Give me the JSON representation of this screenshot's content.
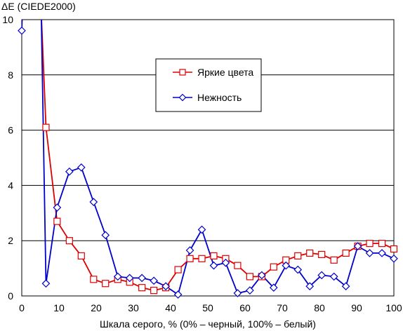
{
  "chart_data": {
    "type": "line",
    "title": "",
    "ylabel": "ΔE (CIEDE2000)",
    "xlabel": "Шкала серого, % (0% – черный, 100% – белый)",
    "xlim": [
      0,
      100
    ],
    "ylim": [
      0,
      10
    ],
    "xticks": [
      "0",
      "10",
      "20",
      "30",
      "40",
      "50",
      "60",
      "70",
      "80",
      "90",
      "100"
    ],
    "yticks": [
      "0",
      "2",
      "4",
      "6",
      "8",
      "10"
    ],
    "grid": "horizontal",
    "legend_position": "center-right",
    "series": [
      {
        "name": "Яркие цвета",
        "color": "#dd0000",
        "marker": "square",
        "x": [
          0,
          5,
          6.5,
          9.5,
          12.8,
          16,
          19.3,
          22.5,
          25.8,
          29,
          32.3,
          35.5,
          38.7,
          42,
          45.2,
          48.4,
          51.6,
          54.8,
          58,
          61.3,
          64.5,
          67.7,
          71,
          74.2,
          77.4,
          80.6,
          83.9,
          87.1,
          90.3,
          93.5,
          96.8,
          100
        ],
        "y": [
          16,
          11,
          6.1,
          2.7,
          2.0,
          1.45,
          0.6,
          0.45,
          0.6,
          0.5,
          0.3,
          0.2,
          0.3,
          0.95,
          1.35,
          1.35,
          1.45,
          1.35,
          1.1,
          0.7,
          0.7,
          1.05,
          1.3,
          1.45,
          1.55,
          1.5,
          1.3,
          1.55,
          1.8,
          1.9,
          1.9,
          1.7
        ]
      },
      {
        "name": "Нежность",
        "color": "#0000cc",
        "marker": "diamond",
        "x": [
          0,
          1.5,
          4.5,
          6.5,
          9.5,
          12.8,
          16,
          19.3,
          22.5,
          25.8,
          29,
          32.3,
          35.5,
          38.7,
          42,
          45.2,
          48.4,
          51.6,
          54.8,
          58,
          61.3,
          64.5,
          67.7,
          71,
          74.2,
          77.4,
          80.6,
          83.9,
          87.1,
          90.3,
          93.5,
          96.8,
          100
        ],
        "y": [
          9.6,
          16,
          16,
          0.45,
          3.2,
          4.5,
          4.65,
          3.4,
          2.2,
          0.7,
          0.65,
          0.65,
          0.55,
          0.35,
          0.05,
          1.65,
          2.4,
          1.1,
          1.2,
          0.1,
          0.2,
          0.75,
          0.3,
          1.1,
          0.95,
          0.35,
          0.75,
          0.7,
          0.35,
          1.8,
          1.55,
          1.55,
          1.35
        ]
      }
    ]
  }
}
